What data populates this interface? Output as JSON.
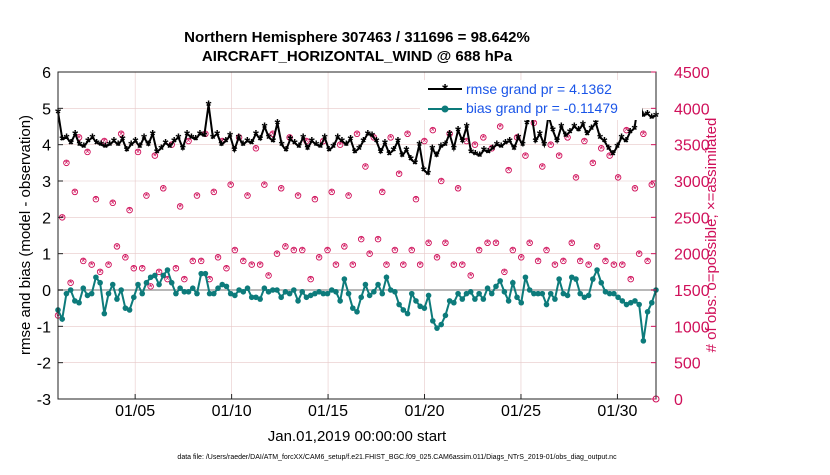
{
  "chart_data": {
    "type": "line",
    "title": "Northern Hemisphere 307463 / 311696 = 98.642%",
    "subtitle": "AIRCRAFT_HORIZONTAL_WIND @ 688 hPa",
    "xlabel": "Jan.01,2019 00:00:00 start",
    "ylabel_left": "rmse and bias (model - observation)",
    "ylabel_right": "# of obs: o=possible; ×=assimilated",
    "footer": "data file: /Users/raeder/DAI/ATM_forcXX/CAM6_setup/f.e21.FHIST_BGC.f09_025.CAM6assim.011/Diags_NTrS_2019-01/obs_diag_output.nc",
    "x_tick_labels": [
      "01/05",
      "01/10",
      "01/15",
      "01/20",
      "01/25",
      "01/30"
    ],
    "x_tick_days": [
      5,
      10,
      15,
      20,
      25,
      30
    ],
    "xlim_days": [
      1,
      32
    ],
    "ylim_left": [
      -3,
      6
    ],
    "y_ticks_left": [
      "-3",
      "-2",
      "-1",
      "0",
      "1",
      "2",
      "3",
      "4",
      "5",
      "6"
    ],
    "ylim_right": [
      0,
      4500
    ],
    "y_ticks_right": [
      "0",
      "500",
      "1000",
      "1500",
      "2000",
      "2500",
      "3000",
      "3500",
      "4000",
      "4500"
    ],
    "grid": true,
    "legend_position": "top-right",
    "colors": {
      "rmse": "#000000",
      "bias": "#0d7b7b",
      "obs_count": "#d0105a",
      "zero_line": "#b8b8b8",
      "grid": "#e6c8c8",
      "axis_right": "#d0105a"
    },
    "series": [
      {
        "name": "rmse grand pr = 4.1362",
        "values": [
          4.9,
          4.15,
          4.2,
          4.05,
          4.3,
          4.0,
          3.95,
          4.1,
          4.2,
          4.05,
          4.0,
          3.95,
          4.0,
          4.1,
          4.0,
          4.15,
          3.85,
          4.0,
          4.1,
          3.95,
          4.2,
          4.0,
          4.3,
          3.8,
          3.9,
          4.05,
          3.95,
          4.1,
          4.2,
          3.9,
          4.3,
          4.2,
          4.15,
          4.3,
          4.25,
          5.1,
          4.2,
          4.3,
          4.0,
          4.1,
          4.25,
          3.85,
          4.2,
          4.0,
          4.1,
          4.05,
          4.3,
          4.15,
          4.5,
          4.2,
          4.1,
          4.6,
          4.0,
          3.85,
          4.15,
          4.05,
          3.95,
          4.2,
          3.9,
          4.1,
          4.0,
          3.95,
          4.2,
          3.85,
          3.95,
          4.2,
          4.1,
          4.0,
          4.15,
          3.8,
          3.9,
          4.1,
          4.3,
          4.25,
          4.1,
          3.8,
          4.05,
          3.75,
          3.85,
          4.1,
          3.7,
          3.85,
          3.6,
          3.5,
          4.0,
          3.3,
          3.2,
          3.9,
          3.7,
          3.95,
          4.0,
          4.3,
          3.9,
          4.4,
          4.1,
          4.5,
          3.8,
          3.75,
          3.7,
          3.85,
          3.8,
          3.9,
          4.0,
          3.95,
          4.05,
          4.1,
          3.9,
          4.2,
          4.0,
          4.6,
          4.9,
          4.1,
          4.3,
          4.0,
          4.8,
          4.4,
          4.1,
          4.5,
          4.25,
          4.35,
          4.5,
          4.4,
          4.55,
          4.3,
          4.45,
          4.6,
          4.2,
          4.1,
          3.9,
          3.75,
          3.95,
          4.2,
          4.1,
          4.35,
          4.45,
          5.25,
          4.8,
          4.85,
          4.75,
          4.8
        ]
      },
      {
        "name": "bias grand pr = -0.11479",
        "values": [
          -0.55,
          -0.8,
          -0.1,
          0.0,
          -0.3,
          -0.35,
          0.05,
          -0.15,
          -0.1,
          0.35,
          0.2,
          -0.65,
          -0.1,
          0.15,
          -0.25,
          0.0,
          -0.5,
          -0.55,
          -0.2,
          0.15,
          -0.1,
          0.2,
          0.35,
          0.4,
          0.15,
          0.4,
          0.55,
          0.2,
          -0.1,
          0.05,
          -0.05,
          -0.05,
          0.05,
          -0.1,
          0.45,
          0.45,
          -0.1,
          -0.1,
          0.05,
          0.15,
          0.1,
          -0.1,
          -0.15,
          0.0,
          -0.05,
          0.05,
          -0.2,
          -0.2,
          -0.25,
          0.05,
          -0.05,
          0.0,
          0.0,
          -0.2,
          -0.05,
          -0.1,
          0.0,
          -0.3,
          -0.05,
          -0.2,
          -0.15,
          -0.1,
          -0.05,
          -0.1,
          -0.1,
          0.0,
          -0.05,
          -0.3,
          0.3,
          -0.1,
          -0.5,
          -0.6,
          -0.2,
          0.15,
          -0.15,
          -0.05,
          0.15,
          -0.1,
          0.35,
          0.0,
          -0.05,
          -0.4,
          -0.55,
          -0.65,
          -0.1,
          -0.3,
          -0.45,
          -0.5,
          -0.15,
          -0.85,
          -1.05,
          -0.95,
          -0.7,
          -0.3,
          -0.35,
          -0.1,
          -0.25,
          -0.1,
          -0.05,
          -0.25,
          -0.1,
          -0.25,
          0.05,
          -0.1,
          0.1,
          0.25,
          -0.05,
          -0.3,
          0.2,
          -0.2,
          -0.35,
          0.35,
          0.0,
          -0.1,
          -0.1,
          -0.1,
          -0.4,
          -0.1,
          -0.25,
          0.3,
          -0.1,
          -0.15,
          0.35,
          0.3,
          -0.1,
          -0.2,
          -0.15,
          0.3,
          0.55,
          0.2,
          -0.05,
          -0.1,
          -0.1,
          -0.2,
          -0.3,
          -0.4,
          -0.35,
          -0.3,
          -0.4,
          -1.4,
          -0.6,
          -0.35,
          0.0
        ]
      }
    ],
    "obs_possible": [
      1150,
      2500,
      3250,
      1600,
      2850,
      3600,
      1900,
      3400,
      1850,
      2750,
      1750,
      3550,
      1850,
      2700,
      2100,
      3650,
      1950,
      2600,
      1800,
      3400,
      1800,
      2800,
      1550,
      3350,
      1750,
      2900,
      1650,
      3500,
      1800,
      2650,
      1650,
      3550,
      1900,
      2800,
      1900,
      3650,
      1650,
      2850,
      1950,
      3550,
      1800,
      2950,
      2050,
      3600,
      1900,
      2800,
      1850,
      3450,
      1850,
      2950,
      1700,
      3650,
      2000,
      2900,
      2100,
      3600,
      2050,
      2800,
      2050,
      3550,
      1650,
      2750,
      1950,
      3550,
      2050,
      2850,
      1850,
      3500,
      2100,
      2800,
      1850,
      3650,
      2200,
      3200,
      2000,
      3600,
      2200,
      2850,
      1850,
      3600,
      2050,
      3100,
      1850,
      3650,
      2050,
      2750,
      1850,
      3550,
      2150,
      3700,
      1950,
      3000,
      2150,
      3650,
      1850,
      2900,
      1850,
      3550,
      1700,
      3500,
      2050,
      3600,
      2150,
      3450,
      2150,
      3750,
      1750,
      3150,
      2050,
      3600,
      1950,
      3350,
      2150,
      3800,
      1900,
      3200,
      2050,
      3500,
      1850,
      3350,
      1900,
      3600,
      2150,
      3050,
      1900,
      3550,
      1850,
      3250,
      2100,
      3450,
      1900,
      3350,
      1850,
      3050,
      1850,
      3700,
      1650,
      2900,
      2000,
      3650,
      1900,
      2950
    ]
  }
}
